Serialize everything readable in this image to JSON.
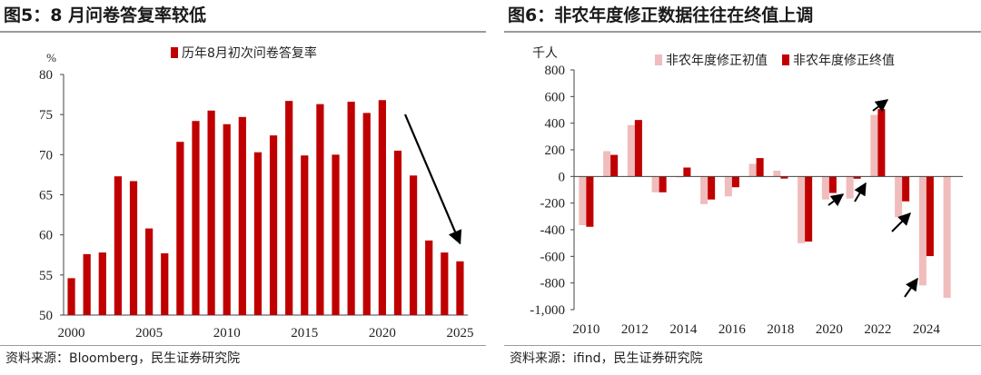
{
  "panel1": {
    "title": "图5：8 月问卷答复率较低",
    "source": "资料来源：Bloomberg，民生证券研究院",
    "chart_data": {
      "type": "bar",
      "title": "图5：8 月问卷答复率较低",
      "ylabel": "%",
      "xlabel": "",
      "ylim": [
        50,
        80
      ],
      "yticks": [
        50,
        55,
        60,
        65,
        70,
        75,
        80
      ],
      "x_tick_labels": [
        "2000",
        "2005",
        "2010",
        "2015",
        "2020",
        "2025"
      ],
      "legend": "top-center",
      "series": [
        {
          "name": "历年8月初次问卷答复率",
          "color": "#c00000",
          "x": [
            2000,
            2001,
            2002,
            2003,
            2004,
            2005,
            2006,
            2007,
            2008,
            2009,
            2010,
            2011,
            2012,
            2013,
            2014,
            2015,
            2016,
            2017,
            2018,
            2019,
            2020,
            2021,
            2022,
            2023,
            2024,
            2025
          ],
          "values": [
            54.6,
            57.6,
            57.8,
            67.3,
            66.7,
            60.8,
            57.7,
            71.6,
            74.2,
            75.5,
            73.8,
            74.7,
            70.3,
            72.4,
            76.7,
            69.9,
            76.3,
            70.0,
            76.6,
            75.2,
            76.8,
            70.5,
            67.4,
            59.3,
            57.8,
            56.7
          ]
        }
      ],
      "annotations": [
        "arrow pointing down toward 2025 bar"
      ]
    }
  },
  "panel2": {
    "title": "图6：非农年度修正数据往往在终值上调",
    "source": "资料来源：ifind，民生证券研究院",
    "chart_data": {
      "type": "bar",
      "title": "图6：非农年度修正数据往往在终值上调",
      "ylabel": "千人",
      "xlabel": "",
      "ylim": [
        -1000,
        800
      ],
      "y_tick_labels": [
        "800",
        "600",
        "400",
        "200",
        "0",
        "-200",
        "-400",
        "-600",
        "-800",
        "-1,000"
      ],
      "yticks": [
        800,
        600,
        400,
        200,
        0,
        -200,
        -400,
        -600,
        -800,
        -1000
      ],
      "x_tick_labels": [
        "2010",
        "2012",
        "2014",
        "2016",
        "2018",
        "2020",
        "2022",
        "2024"
      ],
      "categories": [
        2010,
        2011,
        2012,
        2013,
        2014,
        2015,
        2016,
        2017,
        2018,
        2019,
        2020,
        2021,
        2022,
        2023,
        2024,
        2025
      ],
      "legend": "top",
      "series": [
        {
          "name": "非农年度修正初值",
          "color": "#f0bcbc",
          "values": [
            -366,
            190,
            386,
            -119,
            -7,
            -208,
            -150,
            95,
            43,
            -501,
            -173,
            -166,
            462,
            -306,
            -818,
            -911
          ]
        },
        {
          "name": "非农年度修正终值",
          "color": "#c00000",
          "values": [
            -378,
            162,
            424,
            -119,
            67,
            -173,
            -81,
            138,
            -16,
            -489,
            -124,
            -17,
            506,
            -187,
            -598,
            null
          ]
        }
      ],
      "annotations": [
        "arrow at 2020",
        "arrow at 2021",
        "arrow at 2022",
        "arrow at 2023",
        "arrow at 2024"
      ]
    }
  }
}
